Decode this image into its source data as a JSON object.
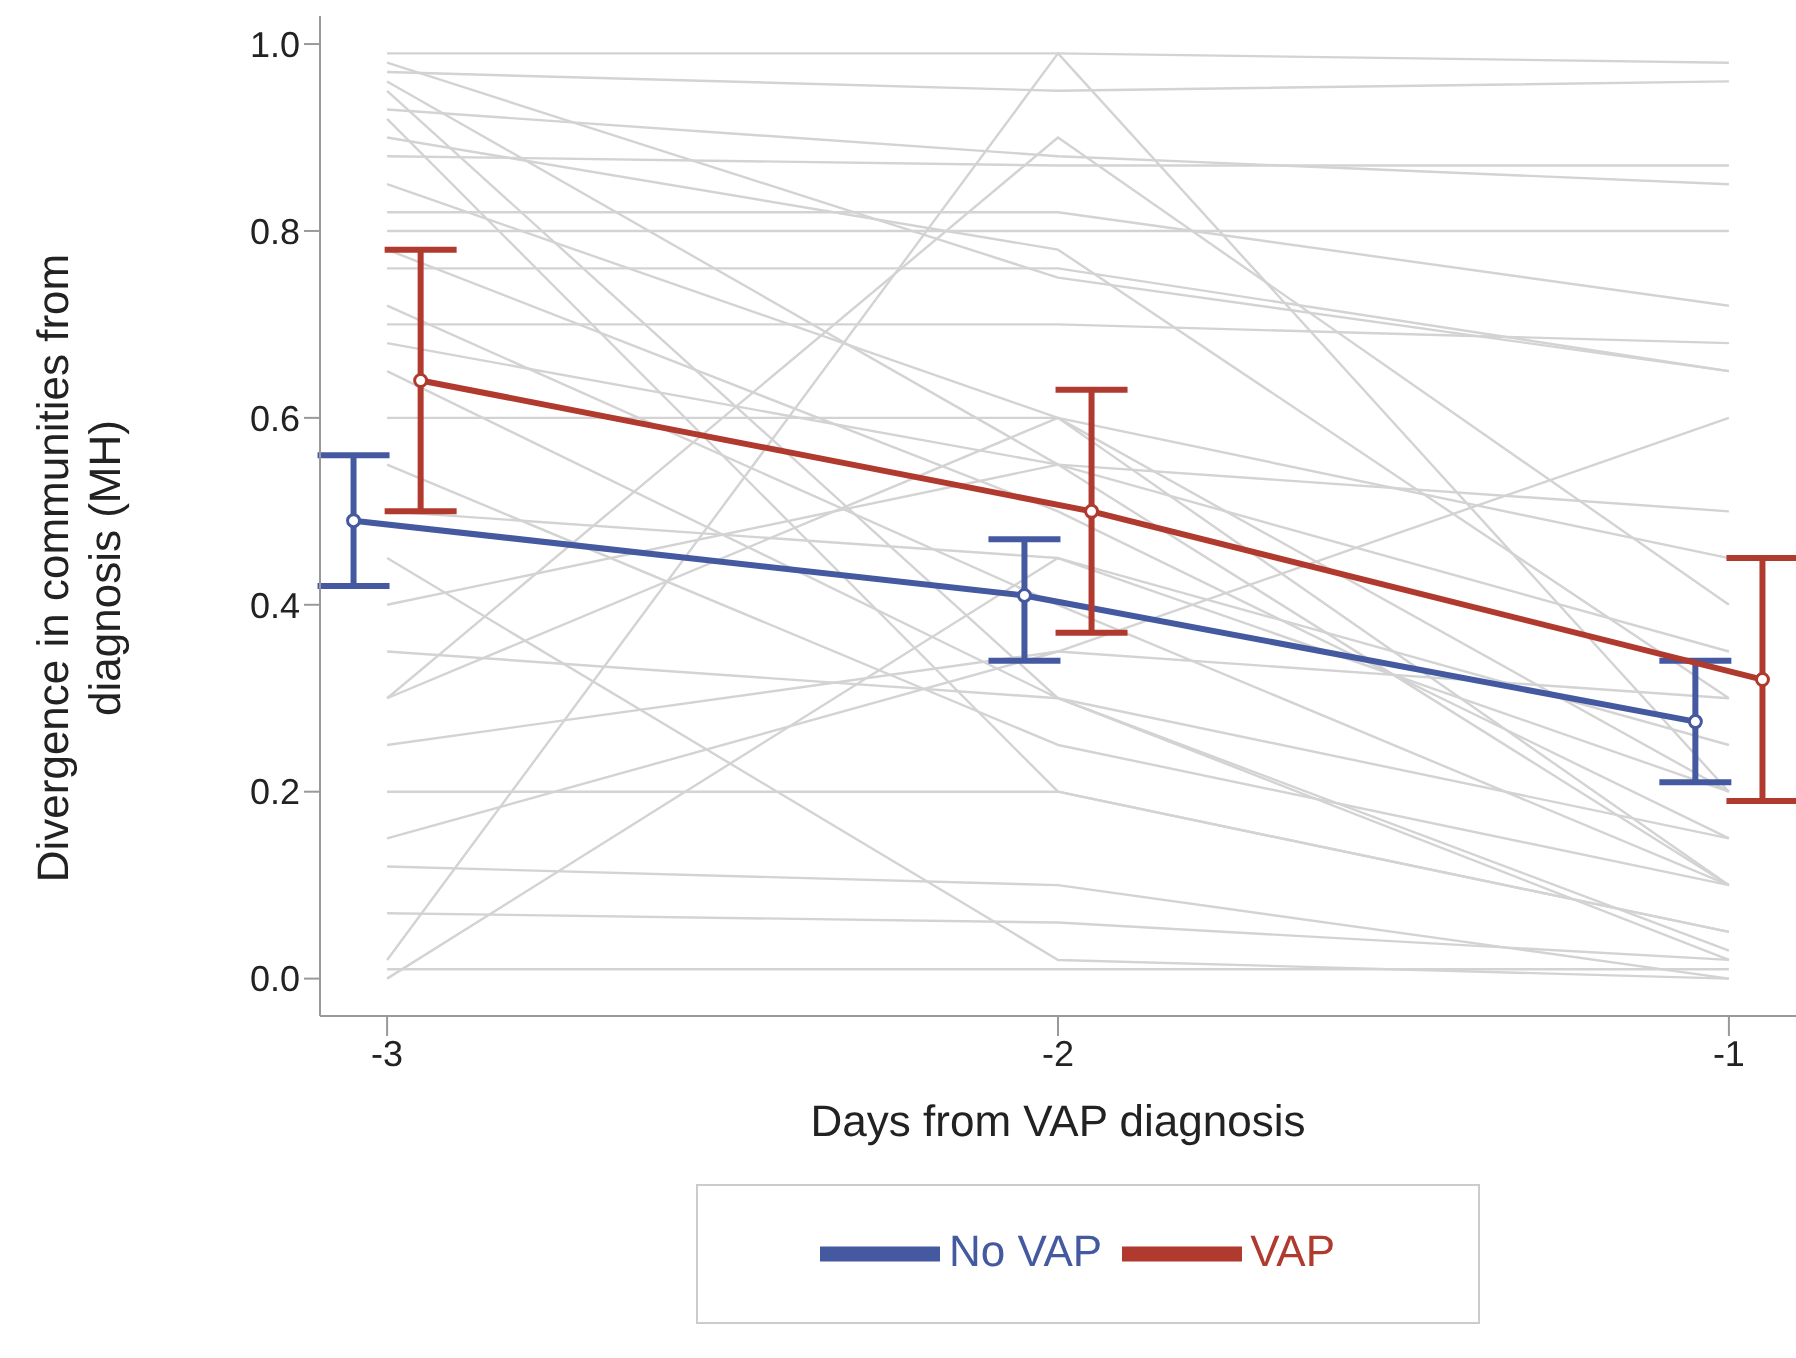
{
  "chart_data": {
    "type": "line",
    "xlabel": "Days from VAP diagnosis",
    "ylabel": "Divergence in communities from diagnosis (MH)",
    "xlim": [
      -3.1,
      -0.9
    ],
    "xticks": [
      -3,
      -2,
      -1
    ],
    "ylim": [
      -0.04,
      1.03
    ],
    "yticks": [
      {
        "value": 0,
        "label": "0.0"
      },
      {
        "value": 0.2,
        "label": "0.2"
      },
      {
        "value": 0.4,
        "label": "0.4"
      },
      {
        "value": 0.6,
        "label": "0.6"
      },
      {
        "value": 0.8,
        "label": "0.8"
      },
      {
        "value": 1,
        "label": "1.0"
      }
    ],
    "legend": "bottom",
    "grid": false,
    "series": [
      {
        "color": "#d3d3d3",
        "marker": "none",
        "x": [
          -3,
          -2,
          -1
        ],
        "values": [
          0.99,
          0.99,
          0.98
        ]
      },
      {
        "color": "#d3d3d3",
        "marker": "none",
        "x": [
          -3,
          -2,
          -1
        ],
        "values": [
          0.98,
          0.75,
          0.65
        ]
      },
      {
        "color": "#d3d3d3",
        "marker": "none",
        "x": [
          -3,
          -2,
          -1
        ],
        "values": [
          0.97,
          0.95,
          0.96
        ]
      },
      {
        "color": "#d3d3d3",
        "marker": "none",
        "x": [
          -3,
          -2,
          -1
        ],
        "values": [
          0.96,
          0.55,
          0.1
        ]
      },
      {
        "color": "#d3d3d3",
        "marker": "none",
        "x": [
          -3,
          -2,
          -1
        ],
        "values": [
          0.95,
          0.3,
          0.02
        ]
      },
      {
        "color": "#d3d3d3",
        "marker": "none",
        "x": [
          -3,
          -2,
          -1
        ],
        "values": [
          0.93,
          0.88,
          0.85
        ]
      },
      {
        "color": "#d3d3d3",
        "marker": "none",
        "x": [
          -3,
          -2,
          -1
        ],
        "values": [
          0.92,
          0.2,
          0.05
        ]
      },
      {
        "color": "#d3d3d3",
        "marker": "none",
        "x": [
          -3,
          -2,
          -1
        ],
        "values": [
          0.9,
          0.78,
          0.3
        ]
      },
      {
        "color": "#d3d3d3",
        "marker": "none",
        "x": [
          -3,
          -2,
          -1
        ],
        "values": [
          0.88,
          0.87,
          0.87
        ]
      },
      {
        "color": "#d3d3d3",
        "marker": "none",
        "x": [
          -3,
          -2,
          -1
        ],
        "values": [
          0.85,
          0.6,
          0.2
        ]
      },
      {
        "color": "#d3d3d3",
        "marker": "none",
        "x": [
          -3,
          -2,
          -1
        ],
        "values": [
          0.82,
          0.82,
          0.72
        ]
      },
      {
        "color": "#d3d3d3",
        "marker": "none",
        "x": [
          -3,
          -2,
          -1
        ],
        "values": [
          0.8,
          0.8,
          0.8
        ]
      },
      {
        "color": "#d3d3d3",
        "marker": "none",
        "x": [
          -3,
          -2,
          -1
        ],
        "values": [
          0.78,
          0.5,
          0.15
        ]
      },
      {
        "color": "#d3d3d3",
        "marker": "none",
        "x": [
          -3,
          -2,
          -1
        ],
        "values": [
          0.76,
          0.76,
          0.65
        ]
      },
      {
        "color": "#d3d3d3",
        "marker": "none",
        "x": [
          -3,
          -2,
          -1
        ],
        "values": [
          0.72,
          0.4,
          0.1
        ]
      },
      {
        "color": "#d3d3d3",
        "marker": "none",
        "x": [
          -3,
          -2,
          -1
        ],
        "values": [
          0.7,
          0.7,
          0.68
        ]
      },
      {
        "color": "#d3d3d3",
        "marker": "none",
        "x": [
          -3,
          -2,
          -1
        ],
        "values": [
          0.68,
          0.55,
          0.35
        ]
      },
      {
        "color": "#d3d3d3",
        "marker": "none",
        "x": [
          -3,
          -2,
          -1
        ],
        "values": [
          0.65,
          0.3,
          0.03
        ]
      },
      {
        "color": "#d3d3d3",
        "marker": "none",
        "x": [
          -3,
          -2,
          -1
        ],
        "values": [
          0.6,
          0.6,
          0.45
        ]
      },
      {
        "color": "#d3d3d3",
        "marker": "none",
        "x": [
          -3,
          -2,
          -1
        ],
        "values": [
          0.55,
          0.25,
          0.1
        ]
      },
      {
        "color": "#d3d3d3",
        "marker": "none",
        "x": [
          -3,
          -2,
          -1
        ],
        "values": [
          0.5,
          0.45,
          0.2
        ]
      },
      {
        "color": "#d3d3d3",
        "marker": "none",
        "x": [
          -3,
          -2,
          -1
        ],
        "values": [
          0.45,
          0.02,
          0.0
        ]
      },
      {
        "color": "#d3d3d3",
        "marker": "none",
        "x": [
          -3,
          -2,
          -1
        ],
        "values": [
          0.4,
          0.55,
          0.5
        ]
      },
      {
        "color": "#d3d3d3",
        "marker": "none",
        "x": [
          -3,
          -2,
          -1
        ],
        "values": [
          0.35,
          0.3,
          0.15
        ]
      },
      {
        "color": "#d3d3d3",
        "marker": "none",
        "x": [
          -3,
          -2,
          -1
        ],
        "values": [
          0.3,
          0.6,
          0.1
        ]
      },
      {
        "color": "#d3d3d3",
        "marker": "none",
        "x": [
          -3,
          -2,
          -1
        ],
        "values": [
          0.25,
          0.35,
          0.6
        ]
      },
      {
        "color": "#d3d3d3",
        "marker": "none",
        "x": [
          -3,
          -2,
          -1
        ],
        "values": [
          0.2,
          0.2,
          0.05
        ]
      },
      {
        "color": "#d3d3d3",
        "marker": "none",
        "x": [
          -3,
          -2,
          -1
        ],
        "values": [
          0.15,
          0.35,
          0.3
        ]
      },
      {
        "color": "#d3d3d3",
        "marker": "none",
        "x": [
          -3,
          -2,
          -1
        ],
        "values": [
          0.12,
          0.1,
          0.0
        ]
      },
      {
        "color": "#d3d3d3",
        "marker": "none",
        "x": [
          -3,
          -2,
          -1
        ],
        "values": [
          0.07,
          0.06,
          0.02
        ]
      },
      {
        "color": "#d3d3d3",
        "marker": "none",
        "x": [
          -3,
          -2,
          -1
        ],
        "values": [
          0.02,
          0.99,
          0.2
        ]
      },
      {
        "color": "#d3d3d3",
        "marker": "none",
        "x": [
          -3,
          -2,
          -1
        ],
        "values": [
          0.01,
          0.01,
          0.01
        ]
      },
      {
        "color": "#d3d3d3",
        "marker": "none",
        "x": [
          -3,
          -2,
          -1
        ],
        "values": [
          0.0,
          0.45,
          0.25
        ]
      },
      {
        "color": "#d3d3d3",
        "marker": "none",
        "x": [
          -3,
          -2,
          -1
        ],
        "values": [
          0.3,
          0.9,
          0.4
        ]
      },
      {
        "name": "No VAP",
        "color": "#4459a0",
        "marker": "circle",
        "x": [
          -3.05,
          -2.05,
          -1.05
        ],
        "values": [
          0.49,
          0.41,
          0.275
        ],
        "errors": [
          [
            0.42,
            0.56
          ],
          [
            0.34,
            0.47
          ],
          [
            0.21,
            0.34
          ]
        ]
      },
      {
        "name": "VAP",
        "color": "#b03a2e",
        "marker": "circle",
        "x": [
          -2.95,
          -1.95,
          -0.95
        ],
        "values": [
          0.64,
          0.5,
          0.32
        ],
        "errors": [
          [
            0.5,
            0.78
          ],
          [
            0.37,
            0.63
          ],
          [
            0.19,
            0.45
          ]
        ]
      }
    ]
  }
}
